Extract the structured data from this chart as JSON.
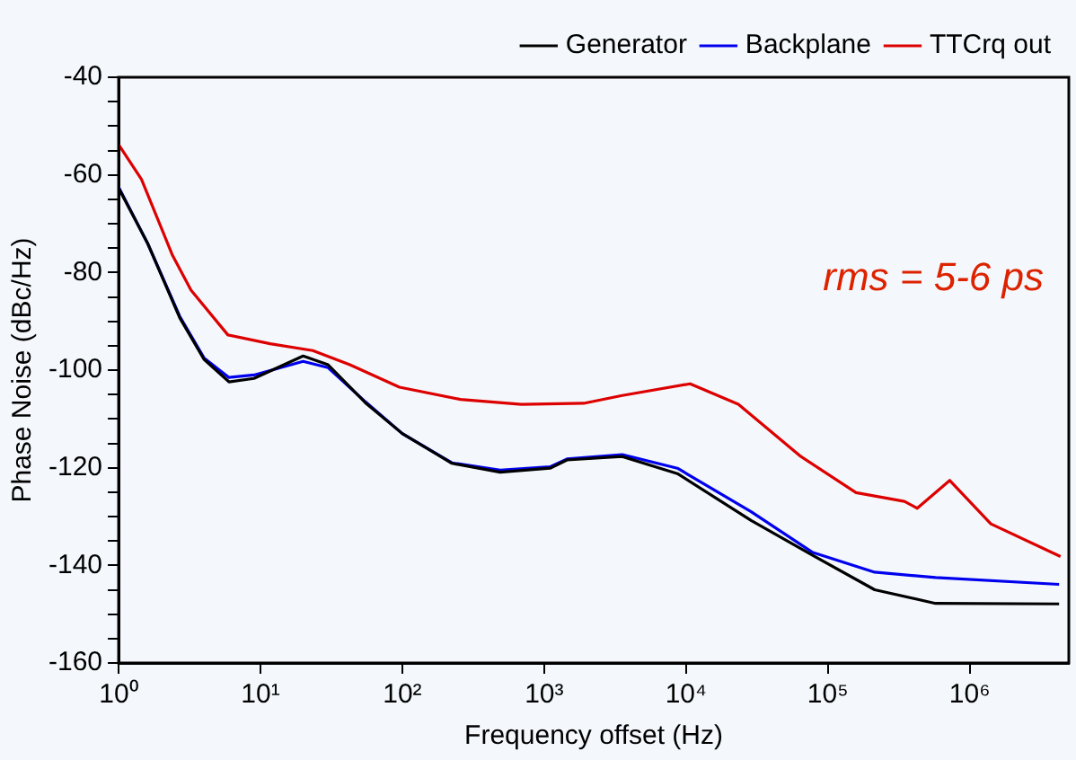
{
  "chart_data": {
    "type": "line",
    "xlabel": "Frequency offset (Hz)",
    "ylabel": "Phase Noise (dBc/Hz)",
    "log": "x",
    "grid": false,
    "legend": "top right",
    "marker": "none",
    "line_style": "solid",
    "xlim": [
      1,
      5000000
    ],
    "xticks": [
      {
        "value": 1,
        "label": "10⁰"
      },
      {
        "value": 10,
        "label": "10¹"
      },
      {
        "value": 100,
        "label": "10²"
      },
      {
        "value": 1000,
        "label": "10³"
      },
      {
        "value": 10000,
        "label": "10⁴"
      },
      {
        "value": 100000,
        "label": "10⁵"
      },
      {
        "value": 1000000,
        "label": "10⁶"
      }
    ],
    "ylim": [
      -160,
      -40
    ],
    "yticks": [
      -160,
      {
        "value": -155,
        "label": null
      },
      {
        "value": -150,
        "label": null
      },
      {
        "value": -145,
        "label": null
      },
      -140,
      {
        "value": -135,
        "label": null
      },
      {
        "value": -130,
        "label": null
      },
      {
        "value": -125,
        "label": null
      },
      -120,
      {
        "value": -115,
        "label": null
      },
      {
        "value": -110,
        "label": null
      },
      {
        "value": -105,
        "label": null
      },
      -100,
      {
        "value": -95,
        "label": null
      },
      {
        "value": -90,
        "label": null
      },
      {
        "value": -85,
        "label": null
      },
      -80,
      {
        "value": -75,
        "label": null
      },
      {
        "value": -70,
        "label": null
      },
      {
        "value": -65,
        "label": null
      },
      -60,
      {
        "value": -55,
        "label": null
      },
      {
        "value": -50,
        "label": null
      },
      {
        "value": -45,
        "label": null
      },
      -40
    ],
    "annotations": [
      "rms = 5-6 ps"
    ],
    "series": [
      {
        "name": "Generator",
        "color": "#000000",
        "x": [
          1,
          1.6,
          2.7,
          4,
          6,
          9,
          20,
          30,
          55,
          100,
          224,
          490,
          1100,
          1450,
          3550,
          8700,
          28800,
          77600,
          214000,
          575000,
          4270000
        ],
        "values": [
          -62.7,
          -74,
          -89.3,
          -97.8,
          -102.4,
          -101.7,
          -97.1,
          -98.9,
          -106.7,
          -113,
          -119.1,
          -120.9,
          -120.1,
          -118.4,
          -117.7,
          -121.2,
          -130.8,
          -137.9,
          -145,
          -147.8,
          -147.9
        ]
      },
      {
        "name": "Backplane",
        "color": "#0000ee",
        "x": [
          1,
          1.6,
          2.7,
          4,
          6,
          9,
          20,
          30,
          55,
          100,
          224,
          490,
          1100,
          1450,
          3550,
          8700,
          28800,
          77600,
          214000,
          575000,
          4270000
        ],
        "values": [
          -62.5,
          -74,
          -89,
          -97.5,
          -101.5,
          -101,
          -98.2,
          -99.5,
          -106.5,
          -113,
          -119,
          -120.5,
          -119.8,
          -118.2,
          -117.3,
          -120.1,
          -129,
          -137.3,
          -141.4,
          -142.5,
          -143.9
        ]
      },
      {
        "name": "TTCrq out",
        "color": "#dd0000",
        "x": [
          1,
          1.45,
          2.4,
          3.24,
          5.9,
          11.7,
          23.4,
          42.7,
          95.5,
          257,
          692,
          1900,
          3550,
          10700,
          23400,
          64600,
          158000,
          347000,
          427000,
          724000,
          1410000,
          4370000
        ],
        "values": [
          -53.8,
          -60.9,
          -76.5,
          -83.6,
          -92.8,
          -94.6,
          -96,
          -98.9,
          -103.5,
          -106,
          -107,
          -106.8,
          -105.2,
          -102.8,
          -107,
          -117.7,
          -125.1,
          -126.9,
          -128.3,
          -122.6,
          -131.5,
          -138.2
        ]
      }
    ]
  }
}
